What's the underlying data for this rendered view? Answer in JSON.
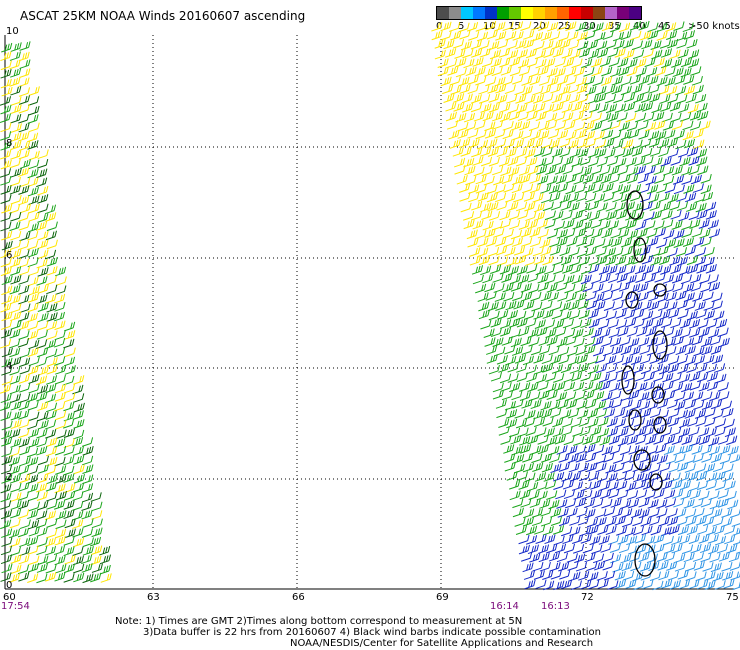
{
  "title": "ASCAT 25KM NOAA Winds 20160607 ascending",
  "legend": {
    "colors": [
      "#4d4d4d",
      "#8c8c8c",
      "#00c8ff",
      "#0078ff",
      "#0032c8",
      "#00a000",
      "#64c800",
      "#ffff00",
      "#ffd200",
      "#ffa000",
      "#ff6400",
      "#ff0000",
      "#c80000",
      "#8b4513",
      "#b464c8",
      "#780078",
      "#4b0082"
    ],
    "labels": [
      "0",
      "5",
      "10",
      "15",
      "20",
      "25",
      "30",
      "35",
      "40",
      "45",
      ">50 knots"
    ]
  },
  "map": {
    "lat_labels": [
      "10",
      "8",
      "6",
      "4",
      "2",
      "0"
    ],
    "lon_labels": [
      "60",
      "63",
      "66",
      "69",
      "72",
      "75"
    ],
    "time_labels": [
      "17:54",
      "16:14",
      "16:13"
    ],
    "barb_colors": {
      "green": "#1aa51a",
      "dark_green": "#0a640a",
      "yellow": "#ffe600",
      "blue": "#1428c8",
      "light_blue": "#3296e6",
      "black": "#000000"
    }
  },
  "notes": {
    "line1": "Note: 1) Times are GMT 2)Times along bottom correspond to measurement at 5N",
    "line2": "3)Data buffer is 22 hrs from 20160607 4) Black wind barbs indicate possible contamination",
    "line3": "NOAA/NESDIS/Center for Satellite Applications and Research"
  }
}
